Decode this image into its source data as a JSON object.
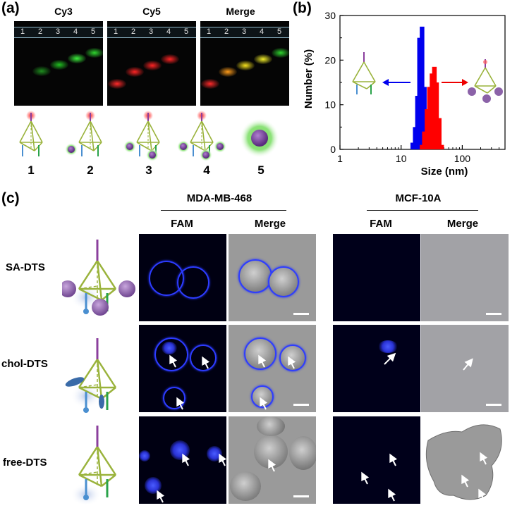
{
  "panel_a": {
    "label": "(a)",
    "gel_titles": [
      "Cy3",
      "Cy5",
      "Merge"
    ],
    "lane_numbers": [
      "1",
      "2",
      "3",
      "4",
      "5"
    ],
    "sample_numbers": [
      "1",
      "2",
      "3",
      "4",
      "5"
    ]
  },
  "panel_b": {
    "label": "(b)",
    "chart_data": {
      "type": "bar",
      "xlabel": "Size (nm)",
      "ylabel": "Number (%)",
      "x_scale": "log",
      "xlim": [
        1,
        500
      ],
      "ylim": [
        0,
        30
      ],
      "x_ticks": [
        "1",
        "10",
        "100"
      ],
      "y_ticks": [
        "0",
        "10",
        "20",
        "30"
      ],
      "series": [
        {
          "color": "#0000ee",
          "x": [
            15.5,
            17,
            18.5,
            20,
            22,
            24
          ],
          "values": [
            1.5,
            5,
            12,
            25,
            27.5,
            14
          ]
        },
        {
          "color": "#ff0000",
          "x": [
            22,
            24,
            26.5,
            29,
            32,
            35,
            38,
            42,
            46
          ],
          "values": [
            1,
            4,
            9,
            14,
            17,
            18.5,
            15,
            7,
            1
          ]
        }
      ]
    }
  },
  "panel_c": {
    "label": "(c)",
    "cell_lines": [
      "MDA-MB-468",
      "MCF-10A"
    ],
    "channels": [
      "FAM",
      "Merge",
      "FAM",
      "Merge"
    ],
    "rows": [
      "SA-DTS",
      "chol-DTS",
      "free-DTS"
    ]
  },
  "colors": {
    "fam": "#2d3cff",
    "cy3": "#27e327",
    "cy5": "#ff2020",
    "dna": "#9ab33c"
  }
}
